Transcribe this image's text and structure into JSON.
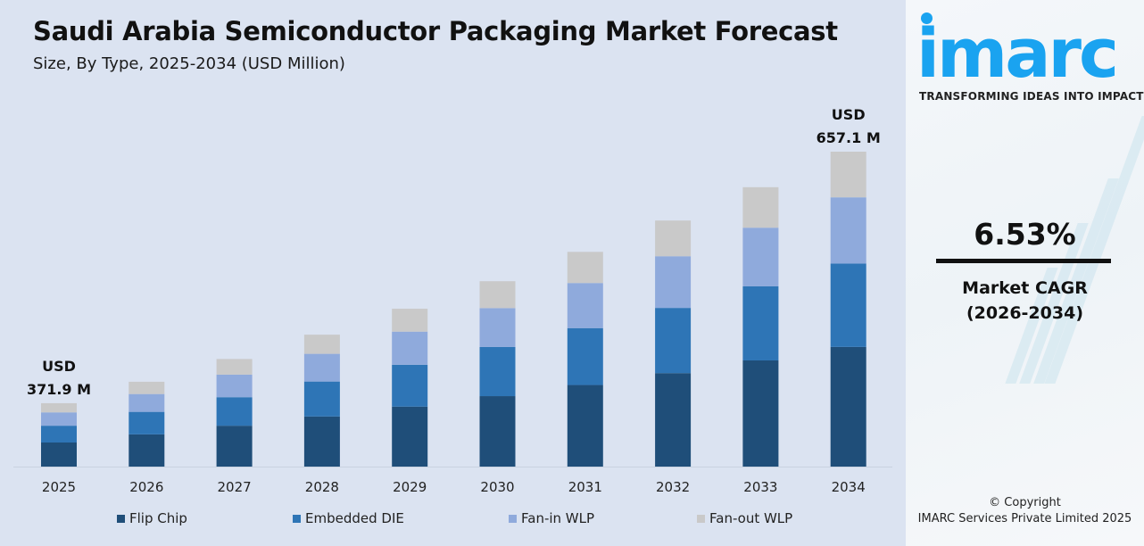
{
  "chart_data": {
    "type": "bar",
    "stacked": true,
    "title": "Saudi Arabia Semiconductor Packaging Market Forecast",
    "subtitle": "Size, By Type, 2025-2034 (USD Million)",
    "categories": [
      "2025",
      "2026",
      "2027",
      "2028",
      "2029",
      "2030",
      "2031",
      "2032",
      "2033",
      "2034"
    ],
    "series": [
      {
        "name": "Flip Chip",
        "color": "#1f4e79",
        "values": [
          141.3,
          150.6,
          160.4,
          170.8,
          182.0,
          193.9,
          206.5,
          220.0,
          234.4,
          249.7
        ]
      },
      {
        "name": "Embedded DIE",
        "color": "#2e75b6",
        "values": [
          98.6,
          105.0,
          111.8,
          119.1,
          126.9,
          135.2,
          144.0,
          153.4,
          163.5,
          174.1
        ]
      },
      {
        "name": "Fan-in WLP",
        "color": "#8faadc",
        "values": [
          78.1,
          83.2,
          88.6,
          94.4,
          100.6,
          107.1,
          114.1,
          121.6,
          129.5,
          138.0
        ]
      },
      {
        "name": "Fan-out WLP",
        "color": "#c9c9c9",
        "values": [
          53.9,
          57.4,
          61.2,
          65.3,
          69.5,
          74.0,
          78.9,
          84.0,
          89.4,
          95.3
        ]
      }
    ],
    "totals": [
      371.9,
      396.2,
      422.0,
      449.6,
      479.0,
      510.2,
      543.5,
      579.0,
      616.8,
      657.1
    ],
    "annotations": [
      {
        "year": "2025",
        "line1": "USD",
        "line2": "371.9 M"
      },
      {
        "year": "2034",
        "line1": "USD",
        "line2": "657.1 M"
      }
    ],
    "legend_position": "bottom",
    "grid": false
  },
  "side": {
    "logo": "imarc",
    "tagline": "TRANSFORMING IDEAS INTO IMPACT",
    "cagr_value": "6.53%",
    "cagr_label": "Market CAGR",
    "cagr_period": "(2026-2034)",
    "copyright": "© Copyright",
    "company": "IMARC Services Private Limited 2025",
    "brand_color": "#1aa3f0"
  }
}
